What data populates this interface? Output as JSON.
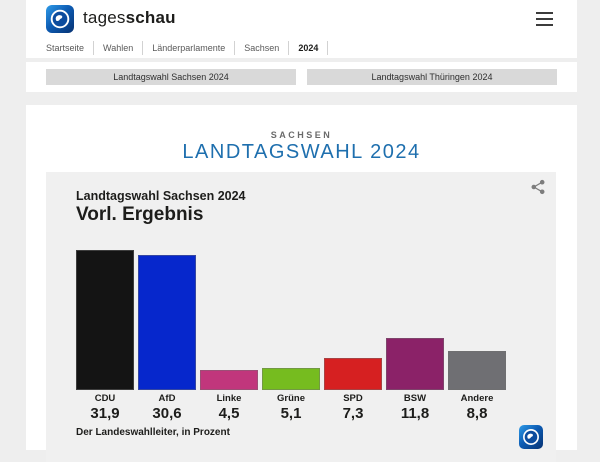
{
  "header": {
    "brand_prefix": "tages",
    "brand_suffix": "schau",
    "breadcrumb": [
      "Startseite",
      "Wahlen",
      "Länderparlamente",
      "Sachsen",
      "2024"
    ]
  },
  "tabs": {
    "sachsen": "Landtagswahl Sachsen 2024",
    "thueringen": "Landtagswahl Thüringen 2024"
  },
  "main": {
    "kicker": "SACHSEN",
    "title": "LANDTAGSWAHL 2024"
  },
  "chart_data": {
    "type": "bar",
    "title": "Landtagswahl Sachsen 2024",
    "subtitle": "Vorl. Ergebnis",
    "categories": [
      "CDU",
      "AfD",
      "Linke",
      "Grüne",
      "SPD",
      "BSW",
      "Andere"
    ],
    "values": [
      31.9,
      30.6,
      4.5,
      5.1,
      7.3,
      11.8,
      8.8
    ],
    "value_labels": [
      "31,9",
      "30,6",
      "4,5",
      "5,1",
      "7,3",
      "11,8",
      "8,8"
    ],
    "bar_colors": [
      "#141414",
      "#0627cc",
      "#c1367c",
      "#76bc1f",
      "#d62021",
      "#8b2268",
      "#6f6f73"
    ],
    "source": "Der Landeswahlleiter, in Prozent",
    "ylabel": "Prozent",
    "ylim": [
      0,
      35
    ],
    "grid": false,
    "legend": "none"
  },
  "icons": {
    "menu": "hamburger-icon",
    "share": "share-icon",
    "brand": "tagesschau-globe-icon"
  },
  "colors": {
    "accent_blue": "#1e6fae",
    "page_bg": "#eeeeee",
    "chart_bg": "#f0f0f0",
    "tab_bg": "#d9d9d9"
  }
}
